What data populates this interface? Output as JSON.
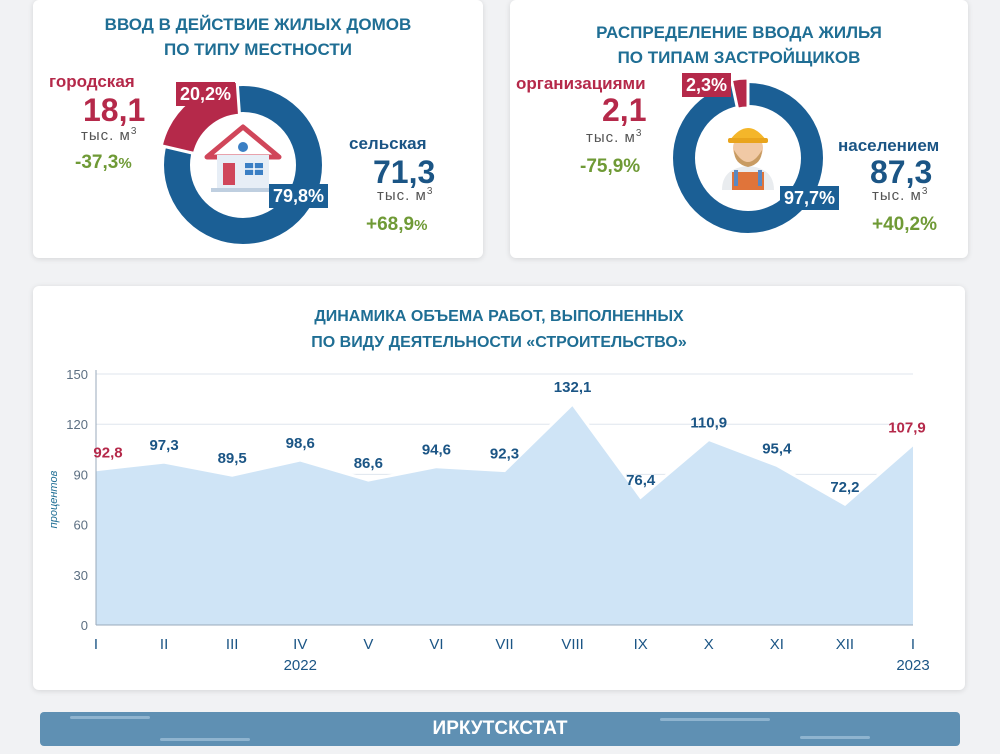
{
  "card1": {
    "title_line1": "ВВОД В ДЕЙСТВИЕ ЖИЛЫХ ДОМОВ",
    "title_line2": "ПО ТИПУ МЕСТНОСТИ",
    "left": {
      "label": "городская",
      "value": "18,1",
      "unit": "тыс. м",
      "unit_sup": "3",
      "change": "-37,3",
      "change_suffix": "%"
    },
    "right": {
      "label": "сельская",
      "value": "71,3",
      "unit": "тыс. м",
      "unit_sup": "3",
      "change": "+68,9",
      "change_suffix": "%"
    },
    "donut": {
      "small_pct": "20,2%",
      "large_pct": "79,8%",
      "small_share": 20.2,
      "large_share": 79.8
    }
  },
  "card2": {
    "title_line1": "РАСПРЕДЕЛЕНИЕ ВВОДА ЖИЛЬЯ",
    "title_line2": "ПО ТИПАМ ЗАСТРОЙЩИКОВ",
    "left": {
      "label": "организациями",
      "value": "2,1",
      "unit": "тыс. м",
      "unit_sup": "3",
      "change": "-75,9%"
    },
    "right": {
      "label": "населением",
      "value": "87,3",
      "unit": "тыс. м",
      "unit_sup": "3",
      "change": "+40,2%"
    },
    "donut": {
      "small_pct": "2,3%",
      "large_pct": "97,7%",
      "small_share": 2.3,
      "large_share": 97.7
    }
  },
  "colors": {
    "red": "#b5294a",
    "blue": "#1b5f95",
    "area": "#cfe4f6",
    "green": "#6f9a36"
  },
  "chart_data": {
    "type": "area",
    "title_line1": "ДИНАМИКА ОБЪЕМА РАБОТ, ВЫПОЛНЕННЫХ",
    "title_line2": "ПО ВИДУ ДЕЯТЕЛЬНОСТИ «СТРОИТЕЛЬСТВО»",
    "ylabel": "процентов",
    "ylim": [
      0,
      150
    ],
    "yticks": [
      0,
      30,
      60,
      90,
      120,
      150
    ],
    "categories": [
      "I",
      "II",
      "III",
      "IV",
      "V",
      "VI",
      "VII",
      "VIII",
      "IX",
      "X",
      "XI",
      "XII",
      "I"
    ],
    "values": [
      92.8,
      97.3,
      89.5,
      98.6,
      86.6,
      94.6,
      92.3,
      132.1,
      76.4,
      110.9,
      95.4,
      72.2,
      107.9
    ],
    "labels": [
      "92,8",
      "97,3",
      "89,5",
      "98,6",
      "86,6",
      "94,6",
      "92,3",
      "132,1",
      "76,4",
      "110,9",
      "95,4",
      "72,2",
      "107,9"
    ],
    "highlighted": [
      0,
      12
    ],
    "year_labels": [
      {
        "index": 3,
        "text": "2022"
      },
      {
        "index": 12,
        "text": "2023"
      }
    ]
  },
  "footer": {
    "text": "ИРКУТСКСТАТ"
  }
}
